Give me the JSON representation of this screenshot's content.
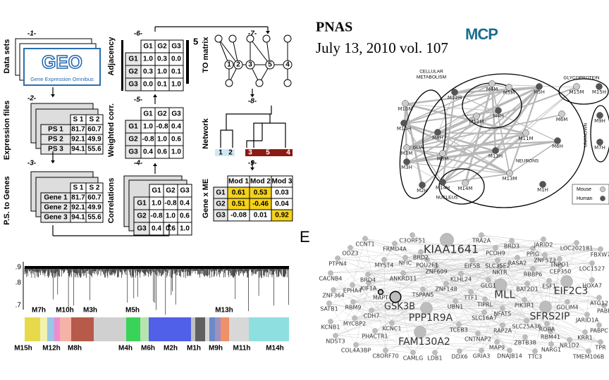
{
  "header": {
    "journal": "PNAS",
    "citation": "July 13, 2010 vol. 107",
    "logo": "MCP"
  },
  "pipeline": {
    "steps": [
      "-1-",
      "-2-",
      "-3-",
      "-4-",
      "-5-",
      "-6-",
      "-7-",
      "-8-",
      "-9-"
    ],
    "stage_labels": [
      "Data sets",
      "Expression files",
      "P.S. to Genes",
      "Correlations",
      "Weighted corr.",
      "Adjacency",
      "TO matrix",
      "Network",
      "Gene x ME"
    ],
    "geo": {
      "logo": "GEO",
      "caption": "Gene Expression Omnibus"
    },
    "expression_table": {
      "header": [
        "S 1",
        "S 2"
      ],
      "rows": [
        [
          "PS 1",
          "81.7",
          "60.7"
        ],
        [
          "PS 2",
          "92.1",
          "49.9"
        ],
        [
          "PS 3",
          "94.1",
          "55.6"
        ]
      ]
    },
    "gene_table": {
      "header": [
        "S 1",
        "S 2"
      ],
      "rows": [
        [
          "Gene 1",
          "81.7",
          "60.7"
        ],
        [
          "Gene 2",
          "92.1",
          "49.9"
        ],
        [
          "Gene 3",
          "94.1",
          "55.6"
        ]
      ]
    },
    "adjacency": {
      "header": [
        "G1",
        "G2",
        "G3"
      ],
      "rows": [
        [
          "G1",
          "1.0",
          "0.3",
          "0.0"
        ],
        [
          "G2",
          "0.3",
          "1.0",
          "0.1"
        ],
        [
          "G3",
          "0.0",
          "0.1",
          "1.0"
        ]
      ],
      "power": "5"
    },
    "weighted_corr": {
      "header": [
        "G1",
        "G2",
        "G3"
      ],
      "rows": [
        [
          "G1",
          "1.0",
          "-0.8",
          "0.4"
        ],
        [
          "G2",
          "-0.8",
          "1.0",
          "0.6"
        ],
        [
          "G3",
          "0.4",
          "0.6",
          "1.0"
        ]
      ]
    },
    "correlations": {
      "header": [
        "G1",
        "G2",
        "G3"
      ],
      "rows": [
        [
          "G1",
          "1.0",
          "-0.8",
          "0.4"
        ],
        [
          "G2",
          "-0.8",
          "1.0",
          "0.6"
        ],
        [
          "G3",
          "0.4",
          "0.6",
          "1.0"
        ]
      ]
    },
    "to_nodes": [
      "1",
      "2",
      "3",
      "5",
      "4"
    ],
    "dendrogram_leaves": [
      "1",
      "2",
      "3",
      "5",
      "4"
    ],
    "gene_me": {
      "header": [
        "Mod 1",
        "Mod 2",
        "Mod 3"
      ],
      "rows": [
        [
          "G1",
          "0.61",
          "0.53",
          "0.03"
        ],
        [
          "G2",
          "0.51",
          "-0.46",
          "0.04"
        ],
        [
          "G3",
          "-0.08",
          "0.01",
          "0.92"
        ]
      ]
    }
  },
  "module_tree": {
    "yticks": [
      ".9",
      ".8",
      ".7"
    ],
    "top_labels": [
      "M7h",
      "M10h",
      "M3h",
      "M5h",
      "M13h"
    ],
    "bottom_labels": [
      "M15h",
      "M12h",
      "M8h",
      "M4h",
      "M6h",
      "M2h",
      "M1h",
      "M9h",
      "M11h",
      "M14h"
    ]
  },
  "module_network": {
    "groups": [
      "CELLULAR",
      "METABOLISM",
      "GLYCOPROTEIN",
      "GLIA",
      "NEURONS",
      "NUCLEUS",
      "UNKNOWN"
    ],
    "nodes": [
      "M10M",
      "M12H",
      "M4M",
      "M5M",
      "M5H",
      "M15M",
      "M15H",
      "M12M",
      "M4H",
      "M6M",
      "M9H",
      "M10H",
      "M8H",
      "M11M",
      "M6H",
      "M7H",
      "M8M",
      "M13H",
      "M3M",
      "M3H",
      "M2H",
      "M14H",
      "M14M",
      "M13M",
      "M1H"
    ],
    "legend": [
      "Mouse",
      "Human"
    ]
  },
  "gene_network": {
    "panel": "E",
    "genes": [
      "CCNT1",
      "C3ORF51",
      "TRA2A",
      "JARID2",
      "LOC202181",
      "FBXW7",
      "ODZ3",
      "FRMD4A",
      "KIAA1641",
      "BRD3",
      "PCDH9",
      "ZNF573",
      "TNPO1",
      "LOC1527",
      "PTPN4",
      "MYST4",
      "NFIC",
      "BRD2",
      "POU2F1",
      "EIF5B",
      "SLC35E2",
      "RASA2",
      "PPIG",
      "CEP350",
      "CACNB4",
      "ZNF609",
      "NKTR",
      "RBBP6",
      "HOXA7",
      "BRD4",
      "ANKRD11",
      "KLHL24",
      "KIF1A",
      "EPHA4",
      "ESF1",
      "EIF2C3",
      "GLG1",
      "MLL",
      "BAT2D1",
      "ZNF364",
      "MAPT",
      "TSPAN5",
      "ZNF148",
      "TTF1",
      "SATB1",
      "RBM9",
      "GSK3B",
      "UBN1",
      "TIPRL",
      "PIK3R1",
      "GOLIM4",
      "ATG12",
      "CDH7",
      "MYCBP2",
      "PPP1R9A",
      "NFAT5",
      "SFRS2IP",
      "JARID1A",
      "PABP",
      "KCNB1",
      "KCNC1",
      "SLC16A7",
      "SLC25A36",
      "RORA",
      "PABPC",
      "PHACTR1",
      "TCEB3",
      "RAP2A",
      "RBM41",
      "KRR1",
      "NDST3",
      "FAM130A2",
      "CNTNAP2",
      "ZBTB38",
      "NR1D2",
      "TPR",
      "COL4A3BP",
      "MAP9",
      "NARG1",
      "TMEM106B",
      "C8ORF70",
      "CAMLG",
      "LDB1",
      "DDX6",
      "GRIA3",
      "DNAJB14",
      "TTC3"
    ]
  }
}
